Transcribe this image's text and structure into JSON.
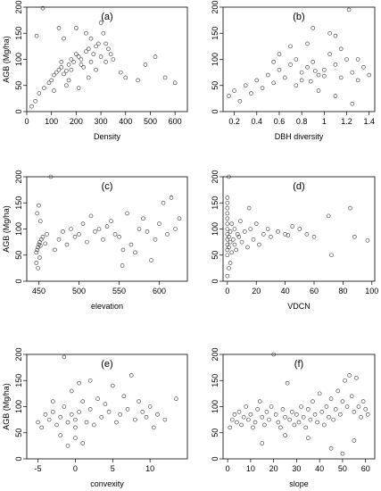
{
  "chart_data": [
    {
      "type": "scatter",
      "panel_label": "(a)",
      "xlabel": "Density",
      "ylabel": "AGB (Mg/ha)",
      "xlim": [
        0,
        650
      ],
      "ylim": [
        0,
        200
      ],
      "xticks": [
        0,
        100,
        200,
        300,
        400,
        500,
        600
      ],
      "yticks": [
        0,
        50,
        100,
        150,
        200
      ],
      "points": [
        [
          65,
          198
        ],
        [
          40,
          145
        ],
        [
          20,
          10
        ],
        [
          35,
          20
        ],
        [
          50,
          35
        ],
        [
          70,
          45
        ],
        [
          90,
          55
        ],
        [
          100,
          60
        ],
        [
          110,
          70
        ],
        [
          120,
          75
        ],
        [
          130,
          80
        ],
        [
          140,
          85
        ],
        [
          150,
          72
        ],
        [
          160,
          78
        ],
        [
          170,
          90
        ],
        [
          180,
          100
        ],
        [
          190,
          95
        ],
        [
          200,
          110
        ],
        [
          210,
          105
        ],
        [
          220,
          100
        ],
        [
          230,
          85
        ],
        [
          240,
          115
        ],
        [
          250,
          120
        ],
        [
          260,
          95
        ],
        [
          270,
          110
        ],
        [
          280,
          125
        ],
        [
          290,
          130
        ],
        [
          300,
          105
        ],
        [
          310,
          150
        ],
        [
          320,
          130
        ],
        [
          330,
          120
        ],
        [
          340,
          110
        ],
        [
          350,
          100
        ],
        [
          380,
          75
        ],
        [
          400,
          65
        ],
        [
          450,
          60
        ],
        [
          480,
          90
        ],
        [
          520,
          105
        ],
        [
          560,
          65
        ],
        [
          600,
          55
        ],
        [
          130,
          160
        ],
        [
          150,
          140
        ],
        [
          170,
          60
        ],
        [
          200,
          160
        ],
        [
          240,
          150
        ],
        [
          260,
          140
        ],
        [
          300,
          170
        ],
        [
          160,
          50
        ],
        [
          210,
          45
        ],
        [
          110,
          40
        ],
        [
          140,
          95
        ],
        [
          180,
          80
        ],
        [
          220,
          90
        ],
        [
          250,
          65
        ],
        [
          280,
          80
        ],
        [
          320,
          95
        ]
      ]
    },
    {
      "type": "scatter",
      "panel_label": "(b)",
      "xlabel": "DBH diversity",
      "ylabel": "",
      "xlim": [
        0.1,
        1.45
      ],
      "ylim": [
        0,
        200
      ],
      "xticks": [
        0.2,
        0.4,
        0.6,
        0.8,
        1.0,
        1.2,
        1.4
      ],
      "yticks": [
        0,
        50,
        100,
        150,
        200
      ],
      "points": [
        [
          0.15,
          30
        ],
        [
          0.2,
          40
        ],
        [
          0.25,
          20
        ],
        [
          0.3,
          50
        ],
        [
          0.35,
          35
        ],
        [
          0.4,
          60
        ],
        [
          0.45,
          45
        ],
        [
          0.5,
          70
        ],
        [
          0.55,
          55
        ],
        [
          0.6,
          80
        ],
        [
          0.65,
          65
        ],
        [
          0.7,
          90
        ],
        [
          0.75,
          100
        ],
        [
          0.8,
          75
        ],
        [
          0.85,
          85
        ],
        [
          0.9,
          95
        ],
        [
          0.95,
          70
        ],
        [
          1.0,
          80
        ],
        [
          1.05,
          110
        ],
        [
          1.1,
          90
        ],
        [
          1.15,
          65
        ],
        [
          1.2,
          100
        ],
        [
          1.25,
          75
        ],
        [
          1.3,
          60
        ],
        [
          1.35,
          85
        ],
        [
          1.4,
          70
        ],
        [
          1.22,
          195
        ],
        [
          0.9,
          160
        ],
        [
          1.05,
          150
        ],
        [
          0.85,
          130
        ],
        [
          1.1,
          145
        ],
        [
          0.7,
          125
        ],
        [
          0.55,
          95
        ],
        [
          0.95,
          40
        ],
        [
          1.1,
          30
        ],
        [
          1.25,
          15
        ],
        [
          0.75,
          50
        ],
        [
          0.8,
          60
        ],
        [
          0.92,
          78
        ],
        [
          1.0,
          68
        ],
        [
          0.88,
          58
        ],
        [
          1.15,
          120
        ],
        [
          1.3,
          100
        ],
        [
          0.6,
          110
        ]
      ]
    },
    {
      "type": "scatter",
      "panel_label": "(c)",
      "xlabel": "elevation",
      "ylabel": "AGB (Mg/ha)",
      "xlim": [
        435,
        635
      ],
      "ylim": [
        0,
        200
      ],
      "xticks": [
        450,
        500,
        550,
        600
      ],
      "yticks": [
        0,
        50,
        100,
        150,
        200
      ],
      "points": [
        [
          447,
          55
        ],
        [
          448,
          60
        ],
        [
          449,
          65
        ],
        [
          450,
          70
        ],
        [
          451,
          75
        ],
        [
          452,
          68
        ],
        [
          453,
          80
        ],
        [
          455,
          85
        ],
        [
          458,
          72
        ],
        [
          460,
          90
        ],
        [
          465,
          200
        ],
        [
          470,
          60
        ],
        [
          475,
          80
        ],
        [
          480,
          95
        ],
        [
          485,
          70
        ],
        [
          490,
          100
        ],
        [
          495,
          85
        ],
        [
          500,
          90
        ],
        [
          505,
          110
        ],
        [
          510,
          75
        ],
        [
          515,
          125
        ],
        [
          520,
          95
        ],
        [
          525,
          100
        ],
        [
          530,
          80
        ],
        [
          535,
          105
        ],
        [
          540,
          115
        ],
        [
          545,
          90
        ],
        [
          550,
          85
        ],
        [
          555,
          60
        ],
        [
          560,
          130
        ],
        [
          565,
          70
        ],
        [
          570,
          55
        ],
        [
          575,
          100
        ],
        [
          580,
          120
        ],
        [
          585,
          95
        ],
        [
          590,
          40
        ],
        [
          595,
          80
        ],
        [
          600,
          110
        ],
        [
          605,
          150
        ],
        [
          610,
          90
        ],
        [
          615,
          160
        ],
        [
          620,
          100
        ],
        [
          625,
          120
        ],
        [
          447,
          35
        ],
        [
          449,
          25
        ],
        [
          451,
          45
        ],
        [
          448,
          130
        ],
        [
          450,
          145
        ],
        [
          452,
          115
        ],
        [
          554,
          30
        ]
      ]
    },
    {
      "type": "scatter",
      "panel_label": "(d)",
      "xlabel": "VDCN",
      "ylabel": "",
      "xlim": [
        -3,
        102
      ],
      "ylim": [
        0,
        200
      ],
      "xticks": [
        0,
        20,
        40,
        60,
        80,
        100
      ],
      "yticks": [
        0,
        50,
        100,
        150,
        200
      ],
      "points": [
        [
          0,
          50
        ],
        [
          0,
          60
        ],
        [
          0,
          70
        ],
        [
          0,
          80
        ],
        [
          0,
          90
        ],
        [
          0,
          100
        ],
        [
          0,
          110
        ],
        [
          0,
          120
        ],
        [
          0,
          130
        ],
        [
          0,
          140
        ],
        [
          0,
          150
        ],
        [
          0,
          160
        ],
        [
          1,
          65
        ],
        [
          1,
          85
        ],
        [
          1,
          200
        ],
        [
          2,
          75
        ],
        [
          2,
          95
        ],
        [
          3,
          55
        ],
        [
          3,
          110
        ],
        [
          4,
          80
        ],
        [
          5,
          70
        ],
        [
          5,
          100
        ],
        [
          6,
          60
        ],
        [
          7,
          90
        ],
        [
          8,
          85
        ],
        [
          9,
          115
        ],
        [
          10,
          75
        ],
        [
          12,
          95
        ],
        [
          14,
          65
        ],
        [
          15,
          140
        ],
        [
          16,
          100
        ],
        [
          18,
          80
        ],
        [
          20,
          110
        ],
        [
          22,
          70
        ],
        [
          25,
          90
        ],
        [
          28,
          100
        ],
        [
          30,
          85
        ],
        [
          35,
          95
        ],
        [
          40,
          90
        ],
        [
          42,
          88
        ],
        [
          45,
          105
        ],
        [
          50,
          100
        ],
        [
          55,
          90
        ],
        [
          60,
          85
        ],
        [
          70,
          125
        ],
        [
          72,
          50
        ],
        [
          85,
          140
        ],
        [
          88,
          85
        ],
        [
          97,
          78
        ],
        [
          0,
          10
        ],
        [
          1,
          25
        ],
        [
          2,
          35
        ]
      ]
    },
    {
      "type": "scatter",
      "panel_label": "(e)",
      "xlabel": "convexity",
      "ylabel": "AGB (Mg/ha)",
      "xlim": [
        -6.5,
        15
      ],
      "ylim": [
        0,
        200
      ],
      "xticks": [
        -5,
        0,
        5,
        10
      ],
      "yticks": [
        0,
        50,
        100,
        150,
        200
      ],
      "points": [
        [
          -5,
          70
        ],
        [
          -4.5,
          60
        ],
        [
          -4,
          85
        ],
        [
          -3.5,
          75
        ],
        [
          -3,
          90
        ],
        [
          -2.5,
          65
        ],
        [
          -2,
          80
        ],
        [
          -1.5,
          100
        ],
        [
          -1.5,
          195
        ],
        [
          -1,
          70
        ],
        [
          -0.5,
          85
        ],
        [
          0,
          60
        ],
        [
          0,
          75
        ],
        [
          0.5,
          90
        ],
        [
          1,
          110
        ],
        [
          1.5,
          70
        ],
        [
          2,
          95
        ],
        [
          2.5,
          65
        ],
        [
          3,
          115
        ],
        [
          3.5,
          80
        ],
        [
          4,
          105
        ],
        [
          4.5,
          90
        ],
        [
          5,
          140
        ],
        [
          5.5,
          70
        ],
        [
          6,
          85
        ],
        [
          6.5,
          120
        ],
        [
          7,
          95
        ],
        [
          7.5,
          160
        ],
        [
          8,
          75
        ],
        [
          8.5,
          110
        ],
        [
          9,
          90
        ],
        [
          9.5,
          80
        ],
        [
          10,
          100
        ],
        [
          10.5,
          60
        ],
        [
          11,
          85
        ],
        [
          12,
          75
        ],
        [
          13.5,
          115
        ],
        [
          -1,
          25
        ],
        [
          0,
          40
        ],
        [
          1,
          30
        ],
        [
          -2,
          45
        ],
        [
          0.5,
          145
        ],
        [
          -0.5,
          130
        ],
        [
          2,
          150
        ],
        [
          -3,
          110
        ]
      ]
    },
    {
      "type": "scatter",
      "panel_label": "(f)",
      "xlabel": "slope",
      "ylabel": "",
      "xlim": [
        -2,
        64
      ],
      "ylim": [
        0,
        200
      ],
      "xticks": [
        0,
        10,
        20,
        30,
        40,
        50,
        60
      ],
      "yticks": [
        0,
        50,
        100,
        150,
        200
      ],
      "points": [
        [
          1,
          60
        ],
        [
          2,
          75
        ],
        [
          3,
          85
        ],
        [
          4,
          70
        ],
        [
          5,
          90
        ],
        [
          6,
          65
        ],
        [
          7,
          80
        ],
        [
          8,
          100
        ],
        [
          9,
          75
        ],
        [
          10,
          85
        ],
        [
          11,
          60
        ],
        [
          12,
          70
        ],
        [
          13,
          95
        ],
        [
          14,
          110
        ],
        [
          15,
          80
        ],
        [
          16,
          65
        ],
        [
          17,
          90
        ],
        [
          18,
          75
        ],
        [
          19,
          100
        ],
        [
          20,
          200
        ],
        [
          21,
          85
        ],
        [
          22,
          70
        ],
        [
          23,
          60
        ],
        [
          24,
          95
        ],
        [
          25,
          80
        ],
        [
          26,
          145
        ],
        [
          27,
          75
        ],
        [
          28,
          90
        ],
        [
          29,
          65
        ],
        [
          30,
          85
        ],
        [
          31,
          70
        ],
        [
          32,
          100
        ],
        [
          33,
          80
        ],
        [
          34,
          60
        ],
        [
          35,
          95
        ],
        [
          36,
          75
        ],
        [
          37,
          110
        ],
        [
          38,
          85
        ],
        [
          39,
          70
        ],
        [
          40,
          125
        ],
        [
          41,
          90
        ],
        [
          42,
          65
        ],
        [
          43,
          100
        ],
        [
          44,
          80
        ],
        [
          45,
          115
        ],
        [
          46,
          75
        ],
        [
          47,
          95
        ],
        [
          48,
          130
        ],
        [
          49,
          85
        ],
        [
          50,
          110
        ],
        [
          51,
          150
        ],
        [
          52,
          100
        ],
        [
          53,
          160
        ],
        [
          54,
          120
        ],
        [
          55,
          90
        ],
        [
          56,
          155
        ],
        [
          57,
          100
        ],
        [
          58,
          80
        ],
        [
          59,
          110
        ],
        [
          60,
          95
        ],
        [
          61,
          85
        ],
        [
          15,
          30
        ],
        [
          25,
          45
        ],
        [
          35,
          40
        ],
        [
          45,
          20
        ],
        [
          50,
          10
        ],
        [
          55,
          35
        ]
      ]
    }
  ]
}
